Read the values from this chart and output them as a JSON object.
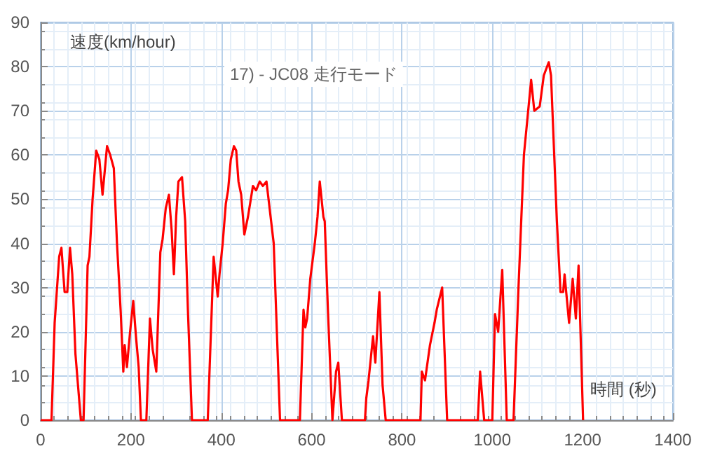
{
  "chart_data": {
    "type": "line",
    "title": "17) - JC08 走行モード",
    "xlabel": "時間 (秒)",
    "ylabel": "速度(km/hour)",
    "x": [
      0,
      24,
      31,
      41,
      46,
      53,
      59,
      65,
      70,
      77,
      89,
      95,
      104,
      108,
      115,
      123,
      130,
      137,
      147,
      154,
      162,
      169,
      177,
      183,
      186,
      191,
      198,
      205,
      211,
      217,
      222,
      234,
      242,
      248,
      256,
      265,
      270,
      277,
      284,
      290,
      295,
      300,
      305,
      313,
      320,
      326,
      335,
      370,
      383,
      392,
      396,
      403,
      410,
      415,
      421,
      428,
      433,
      438,
      444,
      451,
      459,
      470,
      477,
      485,
      492,
      500,
      508,
      516,
      523,
      530,
      574,
      582,
      586,
      590,
      597,
      607,
      613,
      618,
      626,
      629,
      636,
      646,
      654,
      659,
      667,
      718,
      721,
      726,
      736,
      741,
      750,
      757,
      764,
      841,
      844,
      851,
      862,
      872,
      877,
      889,
      900,
      968,
      973,
      982,
      1000,
      1006,
      1013,
      1022,
      1032,
      1047,
      1058,
      1070,
      1086,
      1093,
      1105,
      1114,
      1125,
      1130,
      1143,
      1151,
      1157,
      1160,
      1170,
      1178,
      1185,
      1191,
      1201
    ],
    "series": [
      {
        "color": "#ff0000",
        "values": [
          0,
          0,
          22,
          37,
          39,
          29,
          29,
          39,
          33,
          15,
          0,
          0,
          35,
          37,
          50,
          61,
          59,
          51,
          62,
          60,
          57,
          40,
          25,
          11,
          17,
          12,
          20,
          27,
          19,
          12,
          0,
          0,
          23,
          16,
          11,
          38,
          41,
          48,
          51,
          43,
          33,
          46,
          54,
          55,
          45,
          25,
          0,
          0,
          37,
          28,
          33,
          40,
          49,
          52,
          59,
          62,
          61,
          54,
          51,
          42,
          46,
          53,
          52,
          54,
          53,
          54,
          47,
          40,
          20,
          0,
          0,
          25,
          21,
          23,
          32,
          40,
          46,
          54,
          46,
          45,
          25,
          0,
          11,
          13,
          0,
          0,
          5,
          9,
          19,
          13,
          29,
          8,
          0,
          0,
          11,
          9,
          17,
          22,
          25,
          30,
          0,
          0,
          11,
          0,
          0,
          24,
          20,
          34,
          0,
          0,
          30,
          60,
          77,
          70,
          71,
          78,
          81,
          78,
          45,
          29,
          29,
          33,
          22,
          32,
          23,
          35,
          0
        ]
      }
    ],
    "xlim": [
      0,
      1400
    ],
    "xticks": [
      0,
      200,
      400,
      600,
      800,
      1000,
      1200,
      1400
    ],
    "ylim": [
      0,
      90
    ],
    "yticks": [
      0,
      10,
      20,
      30,
      40,
      50,
      60,
      70,
      80,
      90
    ],
    "grid": true,
    "marker": "none",
    "line_style": "solid"
  }
}
